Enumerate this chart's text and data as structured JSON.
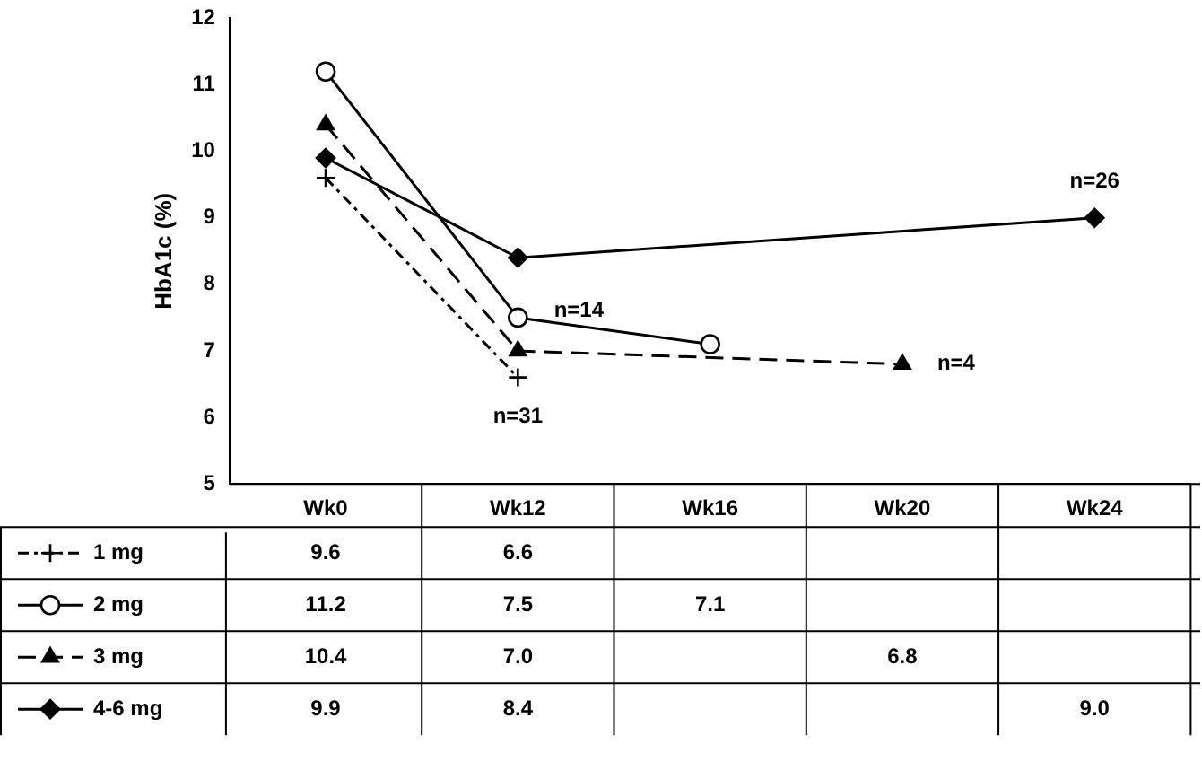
{
  "chart_data": {
    "type": "line",
    "ylabel": "HbA1c (%)",
    "categories": [
      "Wk0",
      "Wk12",
      "Wk16",
      "Wk20",
      "Wk24"
    ],
    "series": [
      {
        "name": "1 mg",
        "color": "#000000",
        "values": [
          9.6,
          6.6,
          null,
          null,
          null
        ],
        "value_labels": [
          "9.6",
          "6.6",
          null,
          null,
          null
        ],
        "marker": "cross",
        "line_style": "dashdot"
      },
      {
        "name": "2 mg",
        "color": "#000000",
        "values": [
          11.2,
          7.5,
          7.1,
          null,
          null
        ],
        "value_labels": [
          "11.2",
          "7.5",
          "7.1",
          null,
          null
        ],
        "marker": "circle",
        "line_style": "solid"
      },
      {
        "name": "3 mg",
        "color": "#000000",
        "values": [
          10.4,
          7.0,
          null,
          6.8,
          null
        ],
        "value_labels": [
          "10.4",
          "7.0",
          null,
          "6.8",
          null
        ],
        "marker": "triangle",
        "line_style": "dashed"
      },
      {
        "name": "4-6 mg",
        "color": "#000000",
        "values": [
          9.9,
          8.4,
          null,
          null,
          9.0
        ],
        "value_labels": [
          "9.9",
          "8.4",
          null,
          null,
          "9.0"
        ],
        "marker": "diamond",
        "line_style": "solid"
      }
    ],
    "ylim": [
      5,
      12
    ],
    "yticks": [
      5,
      6,
      7,
      8,
      9,
      10,
      11,
      12
    ],
    "grid": false,
    "legend": "bottom",
    "annotations": [
      {
        "text": "n=31",
        "x": "Wk12",
        "y": 6.6
      },
      {
        "text": "n=14",
        "x": "Wk12",
        "y": 7.5
      },
      {
        "text": "n=4",
        "x": "Wk20",
        "y": 6.8
      },
      {
        "text": "n=26",
        "x": "Wk24",
        "y": 9.0
      }
    ]
  }
}
